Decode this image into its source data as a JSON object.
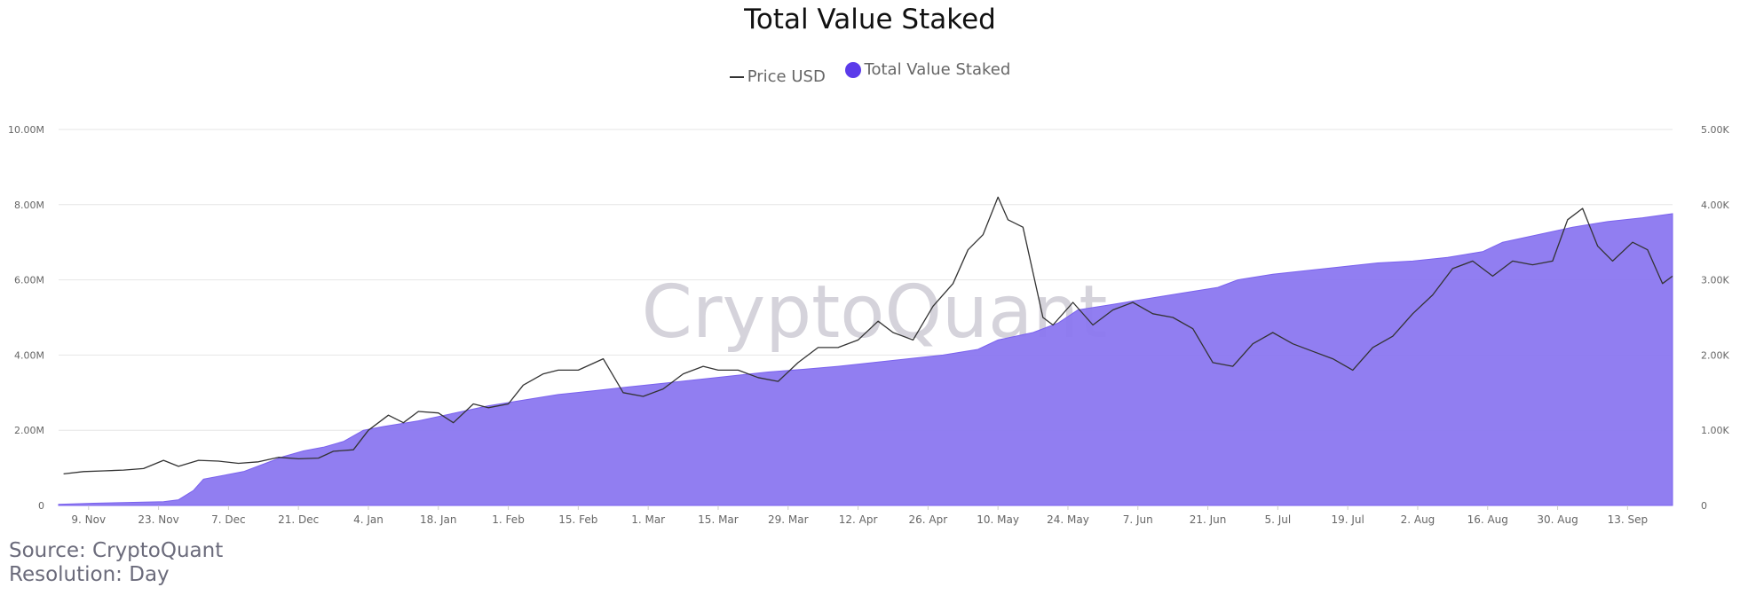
{
  "title": "Total Value Staked",
  "source": "Source: CryptoQuant",
  "resolution": "Resolution: Day",
  "watermark": "CryptoQuant",
  "legend": [
    {
      "label": "Price USD",
      "type": "line",
      "color": "#333333"
    },
    {
      "label": "Total Value Staked",
      "type": "dot",
      "color": "#5b3bea"
    }
  ],
  "chart_data": {
    "type": "area",
    "title": "Total Value Staked",
    "x_axis": {
      "tick_labels": [
        "9. Nov",
        "23. Nov",
        "7. Dec",
        "21. Dec",
        "4. Jan",
        "18. Jan",
        "1. Feb",
        "15. Feb",
        "1. Mar",
        "15. Mar",
        "29. Mar",
        "12. Apr",
        "26. Apr",
        "10. May",
        "24. May",
        "7. Jun",
        "21. Jun",
        "5. Jul",
        "19. Jul",
        "2. Aug",
        "16. Aug",
        "30. Aug",
        "13. Sep"
      ],
      "start": "2020-11-03",
      "end": "2021-09-22"
    },
    "y_left": {
      "label": "",
      "range": [
        0,
        10000000
      ],
      "tick_values": [
        0,
        2000000,
        4000000,
        6000000,
        8000000,
        10000000
      ],
      "tick_labels": [
        "0",
        "2.00M",
        "4.00M",
        "6.00M",
        "8.00M",
        "10.00M"
      ]
    },
    "y_right": {
      "label": "",
      "range": [
        0,
        5000
      ],
      "tick_values": [
        0,
        1000,
        2000,
        3000,
        4000,
        5000
      ],
      "tick_labels": [
        "0",
        "1.00K",
        "2.00K",
        "3.00K",
        "4.00K",
        "5.00K"
      ]
    },
    "grid": true,
    "legend_position": "top-center",
    "series": [
      {
        "name": "Total Value Staked",
        "type": "area",
        "axis": "left",
        "color": "#8b77f0",
        "points": [
          [
            "2020-11-03",
            30000
          ],
          [
            "2020-11-10",
            60000
          ],
          [
            "2020-11-17",
            80000
          ],
          [
            "2020-11-24",
            100000
          ],
          [
            "2020-11-27",
            150000
          ],
          [
            "2020-11-30",
            400000
          ],
          [
            "2020-12-02",
            700000
          ],
          [
            "2020-12-06",
            800000
          ],
          [
            "2020-12-10",
            900000
          ],
          [
            "2020-12-14",
            1100000
          ],
          [
            "2020-12-18",
            1300000
          ],
          [
            "2020-12-22",
            1450000
          ],
          [
            "2020-12-26",
            1550000
          ],
          [
            "2020-12-30",
            1700000
          ],
          [
            "2021-01-03",
            2000000
          ],
          [
            "2021-01-07",
            2100000
          ],
          [
            "2021-01-14",
            2250000
          ],
          [
            "2021-01-21",
            2450000
          ],
          [
            "2021-01-28",
            2650000
          ],
          [
            "2021-02-04",
            2800000
          ],
          [
            "2021-02-11",
            2950000
          ],
          [
            "2021-02-18",
            3050000
          ],
          [
            "2021-02-25",
            3150000
          ],
          [
            "2021-03-04",
            3250000
          ],
          [
            "2021-03-11",
            3350000
          ],
          [
            "2021-03-18",
            3450000
          ],
          [
            "2021-03-25",
            3550000
          ],
          [
            "2021-04-01",
            3620000
          ],
          [
            "2021-04-08",
            3700000
          ],
          [
            "2021-04-15",
            3800000
          ],
          [
            "2021-04-22",
            3900000
          ],
          [
            "2021-04-29",
            4000000
          ],
          [
            "2021-05-06",
            4150000
          ],
          [
            "2021-05-10",
            4400000
          ],
          [
            "2021-05-17",
            4600000
          ],
          [
            "2021-05-22",
            4850000
          ],
          [
            "2021-05-26",
            5200000
          ],
          [
            "2021-06-02",
            5350000
          ],
          [
            "2021-06-09",
            5500000
          ],
          [
            "2021-06-16",
            5650000
          ],
          [
            "2021-06-23",
            5800000
          ],
          [
            "2021-06-27",
            6000000
          ],
          [
            "2021-07-04",
            6150000
          ],
          [
            "2021-07-11",
            6250000
          ],
          [
            "2021-07-18",
            6350000
          ],
          [
            "2021-07-25",
            6450000
          ],
          [
            "2021-08-01",
            6500000
          ],
          [
            "2021-08-08",
            6600000
          ],
          [
            "2021-08-15",
            6750000
          ],
          [
            "2021-08-19",
            7000000
          ],
          [
            "2021-08-26",
            7200000
          ],
          [
            "2021-09-02",
            7400000
          ],
          [
            "2021-09-09",
            7550000
          ],
          [
            "2021-09-16",
            7650000
          ],
          [
            "2021-09-22",
            7760000
          ]
        ]
      },
      {
        "name": "Price USD",
        "type": "line",
        "axis": "right",
        "color": "#333333",
        "points": [
          [
            "2020-11-04",
            420
          ],
          [
            "2020-11-08",
            450
          ],
          [
            "2020-11-12",
            460
          ],
          [
            "2020-11-16",
            470
          ],
          [
            "2020-11-20",
            490
          ],
          [
            "2020-11-24",
            600
          ],
          [
            "2020-11-27",
            520
          ],
          [
            "2020-12-01",
            600
          ],
          [
            "2020-12-05",
            590
          ],
          [
            "2020-12-09",
            560
          ],
          [
            "2020-12-13",
            580
          ],
          [
            "2020-12-17",
            640
          ],
          [
            "2020-12-21",
            620
          ],
          [
            "2020-12-25",
            630
          ],
          [
            "2020-12-28",
            720
          ],
          [
            "2021-01-01",
            740
          ],
          [
            "2021-01-04",
            1000
          ],
          [
            "2021-01-08",
            1200
          ],
          [
            "2021-01-11",
            1100
          ],
          [
            "2021-01-14",
            1250
          ],
          [
            "2021-01-18",
            1230
          ],
          [
            "2021-01-21",
            1100
          ],
          [
            "2021-01-25",
            1350
          ],
          [
            "2021-01-28",
            1300
          ],
          [
            "2021-02-01",
            1350
          ],
          [
            "2021-02-04",
            1600
          ],
          [
            "2021-02-08",
            1750
          ],
          [
            "2021-02-11",
            1800
          ],
          [
            "2021-02-15",
            1800
          ],
          [
            "2021-02-20",
            1950
          ],
          [
            "2021-02-24",
            1500
          ],
          [
            "2021-02-28",
            1450
          ],
          [
            "2021-03-04",
            1550
          ],
          [
            "2021-03-08",
            1750
          ],
          [
            "2021-03-12",
            1850
          ],
          [
            "2021-03-15",
            1800
          ],
          [
            "2021-03-19",
            1800
          ],
          [
            "2021-03-23",
            1700
          ],
          [
            "2021-03-27",
            1650
          ],
          [
            "2021-03-31",
            1900
          ],
          [
            "2021-04-04",
            2100
          ],
          [
            "2021-04-08",
            2100
          ],
          [
            "2021-04-12",
            2200
          ],
          [
            "2021-04-16",
            2450
          ],
          [
            "2021-04-19",
            2300
          ],
          [
            "2021-04-23",
            2200
          ],
          [
            "2021-04-27",
            2650
          ],
          [
            "2021-05-01",
            2950
          ],
          [
            "2021-05-04",
            3400
          ],
          [
            "2021-05-07",
            3600
          ],
          [
            "2021-05-10",
            4100
          ],
          [
            "2021-05-12",
            3800
          ],
          [
            "2021-05-15",
            3700
          ],
          [
            "2021-05-19",
            2500
          ],
          [
            "2021-05-21",
            2400
          ],
          [
            "2021-05-25",
            2700
          ],
          [
            "2021-05-29",
            2400
          ],
          [
            "2021-06-02",
            2600
          ],
          [
            "2021-06-06",
            2700
          ],
          [
            "2021-06-10",
            2550
          ],
          [
            "2021-06-14",
            2500
          ],
          [
            "2021-06-18",
            2350
          ],
          [
            "2021-06-22",
            1900
          ],
          [
            "2021-06-26",
            1850
          ],
          [
            "2021-06-30",
            2150
          ],
          [
            "2021-07-04",
            2300
          ],
          [
            "2021-07-08",
            2150
          ],
          [
            "2021-07-12",
            2050
          ],
          [
            "2021-07-16",
            1950
          ],
          [
            "2021-07-20",
            1800
          ],
          [
            "2021-07-24",
            2100
          ],
          [
            "2021-07-28",
            2250
          ],
          [
            "2021-08-01",
            2550
          ],
          [
            "2021-08-05",
            2800
          ],
          [
            "2021-08-09",
            3150
          ],
          [
            "2021-08-13",
            3250
          ],
          [
            "2021-08-17",
            3050
          ],
          [
            "2021-08-21",
            3250
          ],
          [
            "2021-08-25",
            3200
          ],
          [
            "2021-08-29",
            3250
          ],
          [
            "2021-09-01",
            3800
          ],
          [
            "2021-09-04",
            3950
          ],
          [
            "2021-09-07",
            3450
          ],
          [
            "2021-09-10",
            3250
          ],
          [
            "2021-09-14",
            3500
          ],
          [
            "2021-09-17",
            3400
          ],
          [
            "2021-09-20",
            2950
          ],
          [
            "2021-09-22",
            3050
          ]
        ]
      }
    ]
  }
}
